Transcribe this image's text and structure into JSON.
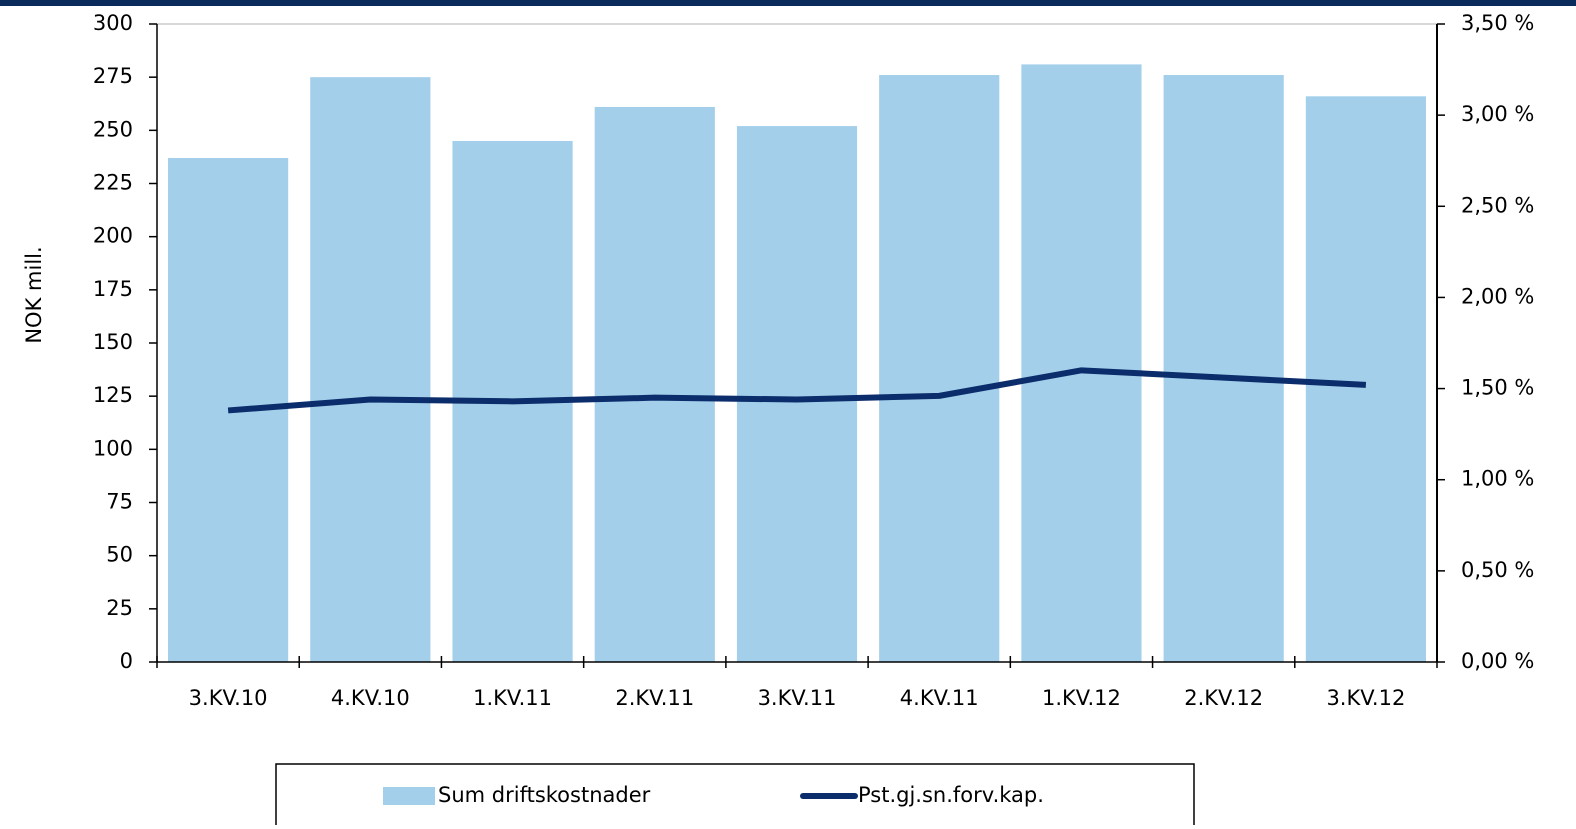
{
  "chart_data": {
    "type": "bar",
    "y_label": "NOK mill.",
    "categories": [
      "3.KV.10",
      "4.KV.10",
      "1.KV.11",
      "2.KV.11",
      "3.KV.11",
      "4.KV.11",
      "1.KV.12",
      "2.KV.12",
      "3.KV.12"
    ],
    "series": [
      {
        "name": "Sum driftskostnader",
        "type": "bar",
        "color": "#a3cfea",
        "values": [
          237,
          275,
          245,
          261,
          252,
          276,
          281,
          276,
          266
        ]
      },
      {
        "name": "Pst.gj.sn.forv.kap.",
        "type": "line",
        "axis": "y2",
        "color": "#0b2d6b",
        "values": [
          1.38,
          1.44,
          1.43,
          1.45,
          1.44,
          1.46,
          1.6,
          1.56,
          1.52
        ]
      }
    ],
    "ylim": [
      0,
      300
    ],
    "yticks": [
      0,
      25,
      50,
      75,
      100,
      125,
      150,
      175,
      200,
      225,
      250,
      275,
      300
    ],
    "y2lim": [
      0,
      3.5
    ],
    "y2ticks": [
      {
        "value": 0,
        "label": "0,00 %"
      },
      {
        "value": 0.5,
        "label": "0,50 %"
      },
      {
        "value": 1,
        "label": "1,00 %"
      },
      {
        "value": 1.5,
        "label": "1,50 %"
      },
      {
        "value": 2,
        "label": "2,00 %"
      },
      {
        "value": 2.5,
        "label": "2,50 %"
      },
      {
        "value": 3,
        "label": "3,00 %"
      },
      {
        "value": 3.5,
        "label": "3,50 %"
      }
    ],
    "grid": false,
    "legend": "bottom"
  }
}
